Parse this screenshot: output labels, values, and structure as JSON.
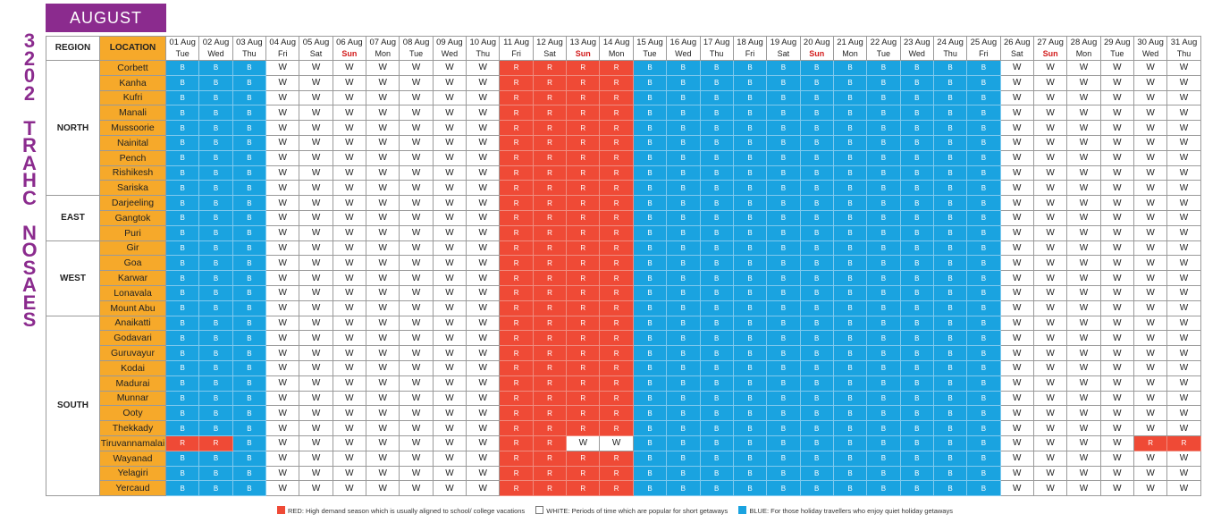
{
  "title": "SEASON CHART 2023",
  "month": "AUGUST",
  "headers": {
    "region": "REGION",
    "location": "LOCATION"
  },
  "dates": [
    "01 Aug",
    "02 Aug",
    "03 Aug",
    "04 Aug",
    "05 Aug",
    "06 Aug",
    "07 Aug",
    "08 Aug",
    "09 Aug",
    "10 Aug",
    "11 Aug",
    "12 Aug",
    "13 Aug",
    "14 Aug",
    "15 Aug",
    "16 Aug",
    "17 Aug",
    "18 Aug",
    "19 Aug",
    "20 Aug",
    "21 Aug",
    "22 Aug",
    "23 Aug",
    "24 Aug",
    "25 Aug",
    "26 Aug",
    "27 Aug",
    "28 Aug",
    "29 Aug",
    "30 Aug",
    "31 Aug"
  ],
  "days": [
    "Tue",
    "Wed",
    "Thu",
    "Fri",
    "Sat",
    "Sun",
    "Mon",
    "Tue",
    "Wed",
    "Thu",
    "Fri",
    "Sat",
    "Sun",
    "Mon",
    "Tue",
    "Wed",
    "Thu",
    "Fri",
    "Sat",
    "Sun",
    "Mon",
    "Tue",
    "Wed",
    "Thu",
    "Fri",
    "Sat",
    "Sun",
    "Mon",
    "Tue",
    "Wed",
    "Thu"
  ],
  "colors": {
    "B": "#1aa3e0",
    "R": "#ef4a36",
    "W": "#ffffff",
    "location": "#f6a92a",
    "title": "#8b2b8e"
  },
  "default_pattern": "BBBWWWWWWWRRRRBBBBBBBBBBBWWWWWW",
  "regions": [
    {
      "name": "NORTH",
      "locations": [
        {
          "name": "Corbett"
        },
        {
          "name": "Kanha"
        },
        {
          "name": "Kufri"
        },
        {
          "name": "Manali"
        },
        {
          "name": "Mussoorie"
        },
        {
          "name": "Nainital"
        },
        {
          "name": "Pench"
        },
        {
          "name": "Rishikesh"
        },
        {
          "name": "Sariska"
        }
      ]
    },
    {
      "name": "EAST",
      "locations": [
        {
          "name": "Darjeeling"
        },
        {
          "name": "Gangtok"
        },
        {
          "name": "Puri"
        }
      ]
    },
    {
      "name": "WEST",
      "locations": [
        {
          "name": "Gir"
        },
        {
          "name": "Goa"
        },
        {
          "name": "Karwar"
        },
        {
          "name": "Lonavala"
        },
        {
          "name": "Mount Abu"
        }
      ]
    },
    {
      "name": "SOUTH",
      "locations": [
        {
          "name": "Anaikatti"
        },
        {
          "name": "Godavari"
        },
        {
          "name": "Guruvayur"
        },
        {
          "name": "Kodai"
        },
        {
          "name": "Madurai"
        },
        {
          "name": "Munnar"
        },
        {
          "name": "Ooty"
        },
        {
          "name": "Thekkady"
        },
        {
          "name": "Tiruvannamalai",
          "pattern": "RRBWWWWWWWRRWWBBBBBBBBBBBWWWWRR"
        },
        {
          "name": "Wayanad"
        },
        {
          "name": "Yelagiri"
        },
        {
          "name": "Yercaud"
        }
      ]
    }
  ],
  "legend": {
    "red": "RED: High demand season which is usually aligned to school/ college vacations",
    "white": "WHITE: Periods of time which are popular for short getaways",
    "blue": "BLUE: For those holiday travellers who enjoy quiet holiday getaways"
  }
}
